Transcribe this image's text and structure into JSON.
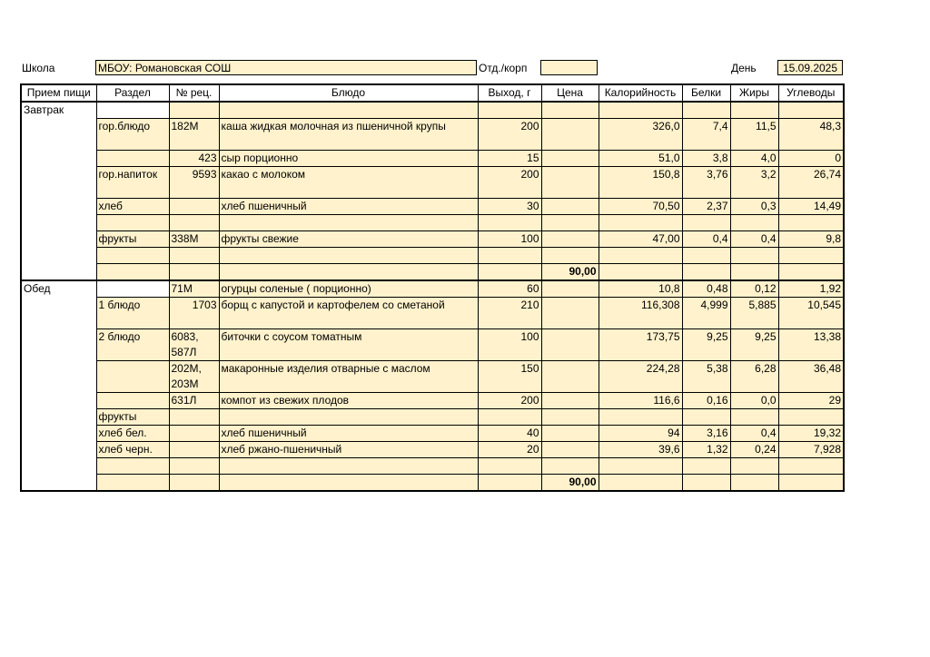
{
  "header": {
    "school_label": "Школа",
    "school": "МБОУ: Романовская СОШ",
    "dept_label": "Отд./корп",
    "day_label": "День",
    "date": "15.09.2025"
  },
  "table": {
    "columns": [
      "Прием пищи",
      "Раздел",
      "№ рец.",
      "Блюдо",
      "Выход, г",
      "Цена",
      "Калорийность",
      "Белки",
      "Жиры",
      "Углеводы"
    ],
    "meals": [
      {
        "name": "Завтрак",
        "rows": [
          [
            null,
            null,
            null,
            null,
            null,
            null,
            null,
            null,
            null
          ],
          [
            "гор.блюдо",
            "182М",
            "каша жидкая молочная из пшеничной крупы",
            "200",
            null,
            "326,0",
            "7,4",
            "11,5",
            "48,3"
          ],
          [
            null,
            "423",
            "сыр порционно",
            "15",
            null,
            "51,0",
            "3,8",
            "4,0",
            "0"
          ],
          [
            "гор.напиток",
            "9593",
            "какао с молоком",
            "200",
            null,
            "150,8",
            "3,76",
            "3,2",
            "26,74"
          ],
          [
            "хлеб",
            null,
            "хлеб пшеничный",
            "30",
            null,
            "70,50",
            "2,37",
            "0,3",
            "14,49"
          ],
          [
            null,
            null,
            null,
            null,
            null,
            null,
            null,
            null,
            null
          ],
          [
            "фрукты",
            "338М",
            "фрукты свежие",
            "100",
            null,
            "47,00",
            "0,4",
            "0,4",
            "9,8"
          ],
          [
            null,
            null,
            null,
            null,
            null,
            null,
            null,
            null,
            null
          ],
          [
            null,
            null,
            null,
            null,
            "90,00",
            null,
            null,
            null,
            null
          ]
        ]
      },
      {
        "name": "Обед",
        "rows": [
          [
            null,
            "71М",
            "огурцы соленые ( порционно)",
            "60",
            null,
            "10,8",
            "0,48",
            "0,12",
            "1,92"
          ],
          [
            "1 блюдо",
            "1703",
            "борщ с капустой и картофелем со сметаной",
            "210",
            null,
            "116,308",
            "4,999",
            "5,885",
            "10,545"
          ],
          [
            "2 блюдо",
            "6083, 587Л",
            "биточки с соусом томатным",
            "100",
            null,
            "173,75",
            "9,25",
            "9,25",
            "13,38"
          ],
          [
            null,
            "202М, 203М",
            "макаронные изделия отварные с маслом",
            "150",
            null,
            "224,28",
            "5,38",
            "6,28",
            "36,48"
          ],
          [
            null,
            "631Л",
            "компот из свежих плодов",
            "200",
            null,
            "116,6",
            "0,16",
            "0,0",
            "29"
          ],
          [
            "фрукты",
            null,
            null,
            null,
            null,
            null,
            null,
            null,
            null
          ],
          [
            "хлеб бел.",
            null,
            "хлеб пшеничный",
            "40",
            null,
            "94",
            "3,16",
            "0,4",
            "19,32"
          ],
          [
            "хлеб черн.",
            null,
            "хлеб ржано-пшеничный",
            "20",
            null,
            "39,6",
            "1,32",
            "0,24",
            "7,928"
          ],
          [
            null,
            null,
            null,
            null,
            null,
            null,
            null,
            null,
            null
          ],
          [
            null,
            null,
            null,
            null,
            "90,00",
            null,
            null,
            null,
            null
          ]
        ]
      }
    ]
  }
}
